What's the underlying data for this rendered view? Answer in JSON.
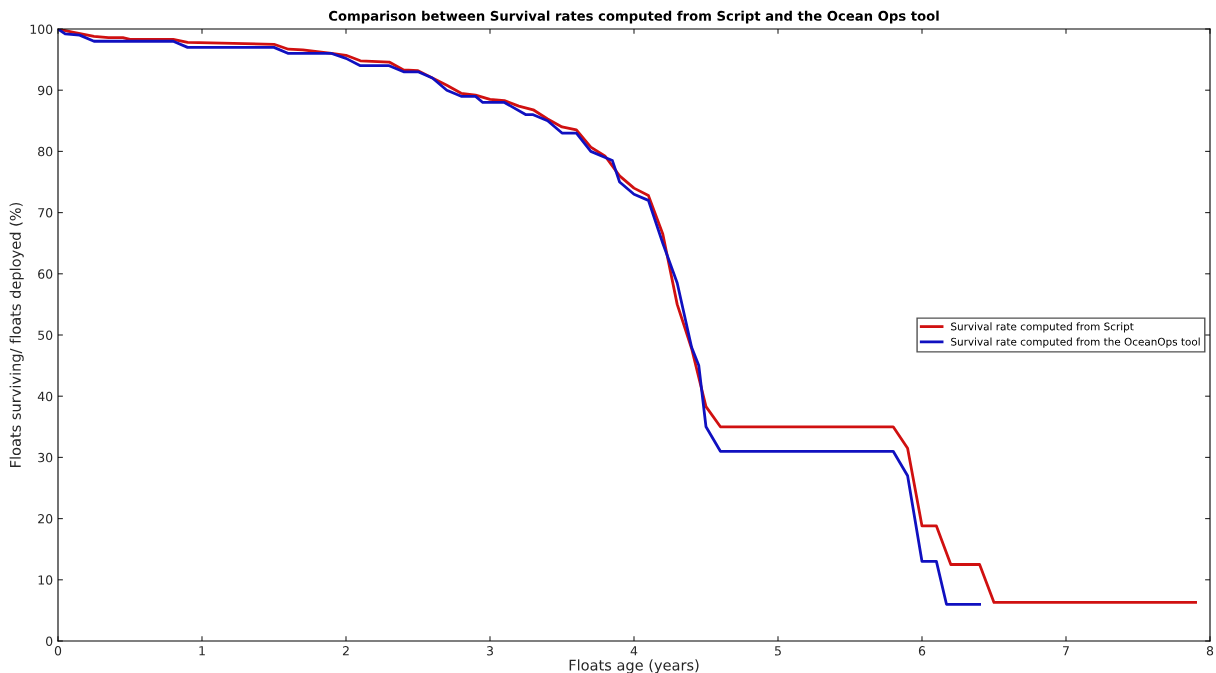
{
  "chart_data": {
    "type": "line",
    "title": "Comparison between Survival rates computed from Script and the Ocean Ops tool",
    "xlabel": "Floats age (years)",
    "ylabel": "Floats surviving/ floats deployed (%)",
    "xlim": [
      0,
      8
    ],
    "xticks": [
      0,
      1,
      2,
      3,
      4,
      5,
      6,
      7,
      8
    ],
    "ylim": [
      0,
      100
    ],
    "yticks": [
      0,
      10,
      20,
      30,
      40,
      50,
      60,
      70,
      80,
      90,
      100
    ],
    "grid": false,
    "legend": "right",
    "marker": "none",
    "line_style": "solid",
    "series": [
      {
        "name": "Survival rate computed from Script",
        "color": "#d01010",
        "x": [
          0,
          0.1,
          0.25,
          0.35,
          0.45,
          0.5,
          0.8,
          0.9,
          1.5,
          1.6,
          1.7,
          1.9,
          2.0,
          2.1,
          2.3,
          2.4,
          2.5,
          2.6,
          2.7,
          2.8,
          2.9,
          3.0,
          3.1,
          3.2,
          3.3,
          3.4,
          3.5,
          3.6,
          3.7,
          3.8,
          3.9,
          4.0,
          4.1,
          4.2,
          4.3,
          4.4,
          4.5,
          4.6,
          5.8,
          5.9,
          6.0,
          6.1,
          6.2,
          6.4,
          6.5,
          7.9
        ],
        "values": [
          100,
          99.5,
          98.8,
          98.6,
          98.6,
          98.3,
          98.3,
          97.8,
          97.5,
          96.7,
          96.6,
          96,
          95.7,
          94.8,
          94.6,
          93.3,
          93.2,
          92,
          90.8,
          89.5,
          89.2,
          88.5,
          88.3,
          87.4,
          86.8,
          85.3,
          84,
          83.5,
          80.7,
          79.2,
          76,
          74,
          72.8,
          66.5,
          55,
          47.8,
          38.3,
          35,
          35,
          31.5,
          18.8,
          18.8,
          12.5,
          12.5,
          6.3,
          6.3
        ]
      },
      {
        "name": "Survival rate computed from the OceanOps tool",
        "color": "#1010c0",
        "x": [
          0,
          0.05,
          0.15,
          0.25,
          0.8,
          0.9,
          1.5,
          1.6,
          1.9,
          2.0,
          2.1,
          2.3,
          2.4,
          2.5,
          2.6,
          2.7,
          2.8,
          2.9,
          2.95,
          3.1,
          3.25,
          3.3,
          3.4,
          3.5,
          3.6,
          3.7,
          3.8,
          3.85,
          3.9,
          4.0,
          4.1,
          4.2,
          4.3,
          4.4,
          4.45,
          4.5,
          4.6,
          5.8,
          5.9,
          6.0,
          6.1,
          6.17,
          6.4
        ],
        "values": [
          100,
          99.2,
          99,
          98,
          98,
          97,
          97,
          96,
          96,
          95.2,
          94,
          94,
          93,
          93,
          92,
          90,
          89,
          89,
          88,
          88,
          86,
          86,
          85,
          83,
          83,
          80,
          79,
          78.5,
          75,
          73,
          72,
          65,
          58.5,
          48,
          45,
          35,
          31,
          31,
          27,
          13,
          13,
          6,
          6
        ]
      }
    ]
  }
}
